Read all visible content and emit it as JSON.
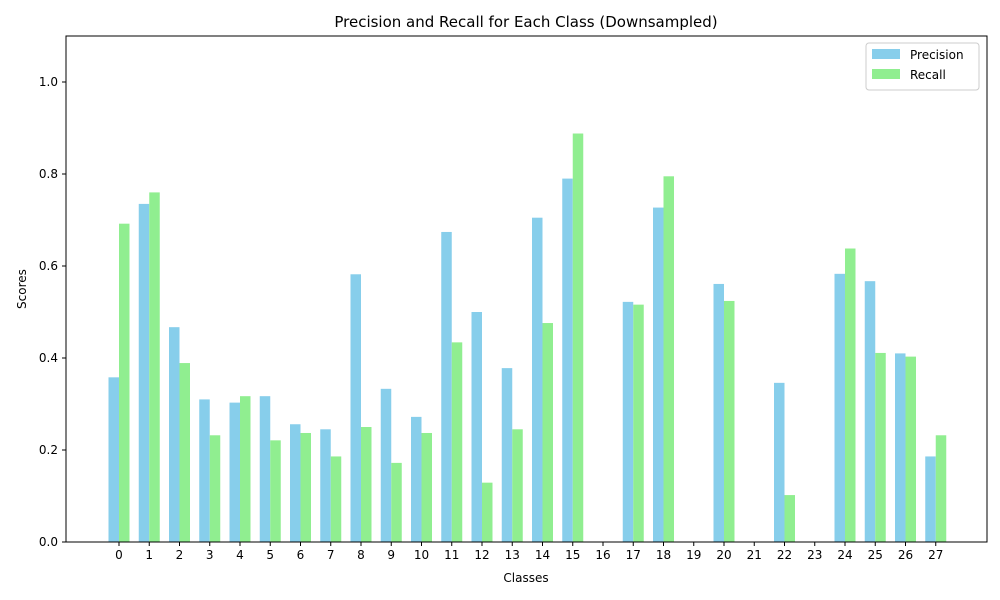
{
  "chart_data": {
    "type": "bar",
    "title": "Precision and Recall for Each Class (Downsampled)",
    "xlabel": "Classes",
    "ylabel": "Scores",
    "ylim": [
      0,
      1.1
    ],
    "yticks": [
      "0.0",
      "0.2",
      "0.4",
      "0.6",
      "0.8",
      "1.0"
    ],
    "categories": [
      "0",
      "1",
      "2",
      "3",
      "4",
      "5",
      "6",
      "7",
      "8",
      "9",
      "10",
      "11",
      "12",
      "13",
      "14",
      "15",
      "16",
      "17",
      "18",
      "19",
      "20",
      "21",
      "22",
      "23",
      "24",
      "25",
      "26",
      "27"
    ],
    "series": [
      {
        "name": "Precision",
        "color": "#87ceeb",
        "values": [
          0.358,
          0.735,
          0.467,
          0.31,
          0.303,
          0.317,
          0.256,
          0.245,
          0.582,
          0.333,
          0.272,
          0.674,
          0.5,
          0.378,
          0.705,
          0.79,
          0.0,
          0.522,
          0.727,
          0.0,
          0.561,
          0.0,
          0.346,
          0.0,
          0.583,
          0.567,
          0.41,
          0.186
        ]
      },
      {
        "name": "Recall",
        "color": "#90ee90",
        "values": [
          0.692,
          0.76,
          0.389,
          0.232,
          0.317,
          0.221,
          0.237,
          0.186,
          0.25,
          0.172,
          0.237,
          0.434,
          0.129,
          0.245,
          0.476,
          0.888,
          0.0,
          0.516,
          0.795,
          0.0,
          0.524,
          0.0,
          0.102,
          0.0,
          0.638,
          0.411,
          0.403,
          0.232
        ]
      }
    ],
    "grid": false,
    "legend_position": "top-right"
  }
}
